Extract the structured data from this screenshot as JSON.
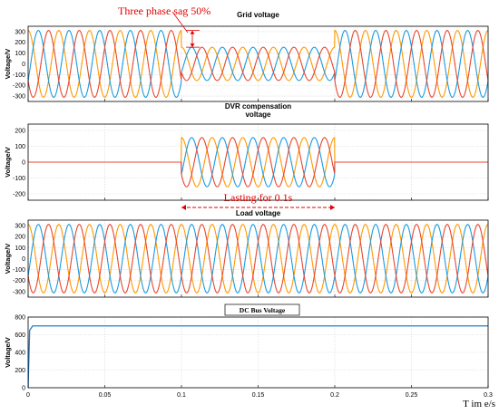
{
  "colors": {
    "phase_a": "#ff9900",
    "phase_b": "#1a9be0",
    "phase_c": "#e8472e",
    "dc": "#1f7fd0",
    "annotation": "#e00000",
    "grid": "#d8d8d8"
  },
  "x_axis": {
    "label": "T im e/s",
    "ticks": [
      "0",
      "0.05",
      "0.1",
      "0.15",
      "0.2",
      "0.25",
      "0.3"
    ],
    "range": [
      0,
      0.3
    ]
  },
  "annotations": {
    "sag": "Three phase sag 50%",
    "lasting": "Lasting for 0.1s"
  },
  "chart_data": [
    {
      "type": "line",
      "title": "Grid voltage",
      "ylabel": "Voltage/V",
      "ylim": [
        -350,
        350
      ],
      "yticks": [
        -300,
        -200,
        -100,
        0,
        100,
        200,
        300
      ],
      "frequency_hz": 50,
      "series": [
        {
          "phase": "a",
          "amplitude": [
            [
              0,
              0.1,
              311
            ],
            [
              0.1,
              0.2,
              155
            ],
            [
              0.2,
              0.3,
              311
            ]
          ]
        },
        {
          "phase": "b",
          "amplitude": [
            [
              0,
              0.1,
              311
            ],
            [
              0.1,
              0.2,
              155
            ],
            [
              0.2,
              0.3,
              311
            ]
          ]
        },
        {
          "phase": "c",
          "amplitude": [
            [
              0,
              0.1,
              311
            ],
            [
              0.1,
              0.2,
              155
            ],
            [
              0.2,
              0.3,
              311
            ]
          ]
        }
      ]
    },
    {
      "type": "line",
      "title": "DVR compensation voltage",
      "ylabel": "Voltage/V",
      "ylim": [
        -240,
        240
      ],
      "yticks": [
        -200,
        -100,
        0,
        100,
        200
      ],
      "frequency_hz": 50,
      "series": [
        {
          "phase": "a",
          "amplitude": [
            [
              0,
              0.1,
              0
            ],
            [
              0.1,
              0.2,
              155
            ],
            [
              0.2,
              0.3,
              0
            ]
          ]
        },
        {
          "phase": "b",
          "amplitude": [
            [
              0,
              0.1,
              0
            ],
            [
              0.1,
              0.2,
              155
            ],
            [
              0.2,
              0.3,
              0
            ]
          ]
        },
        {
          "phase": "c",
          "amplitude": [
            [
              0,
              0.1,
              0
            ],
            [
              0.1,
              0.2,
              155
            ],
            [
              0.2,
              0.3,
              0
            ]
          ]
        }
      ]
    },
    {
      "type": "line",
      "title": "Load voltage",
      "ylabel": "Voltage/V",
      "ylim": [
        -350,
        350
      ],
      "yticks": [
        -300,
        -200,
        -100,
        0,
        100,
        200,
        300
      ],
      "frequency_hz": 50,
      "series": [
        {
          "phase": "a",
          "amplitude": [
            [
              0,
              0.3,
              311
            ]
          ]
        },
        {
          "phase": "b",
          "amplitude": [
            [
              0,
              0.3,
              311
            ]
          ]
        },
        {
          "phase": "c",
          "amplitude": [
            [
              0,
              0.3,
              311
            ]
          ]
        }
      ]
    },
    {
      "type": "line",
      "title": "DC Bus Voltage",
      "ylabel": "Voltage/V",
      "ylim": [
        0,
        800
      ],
      "yticks": [
        0,
        200,
        400,
        600,
        800
      ],
      "series": [
        {
          "name": "",
          "x": [
            0,
            0.001,
            0.003,
            0.3
          ],
          "values": [
            0,
            650,
            700,
            700
          ]
        }
      ]
    }
  ]
}
